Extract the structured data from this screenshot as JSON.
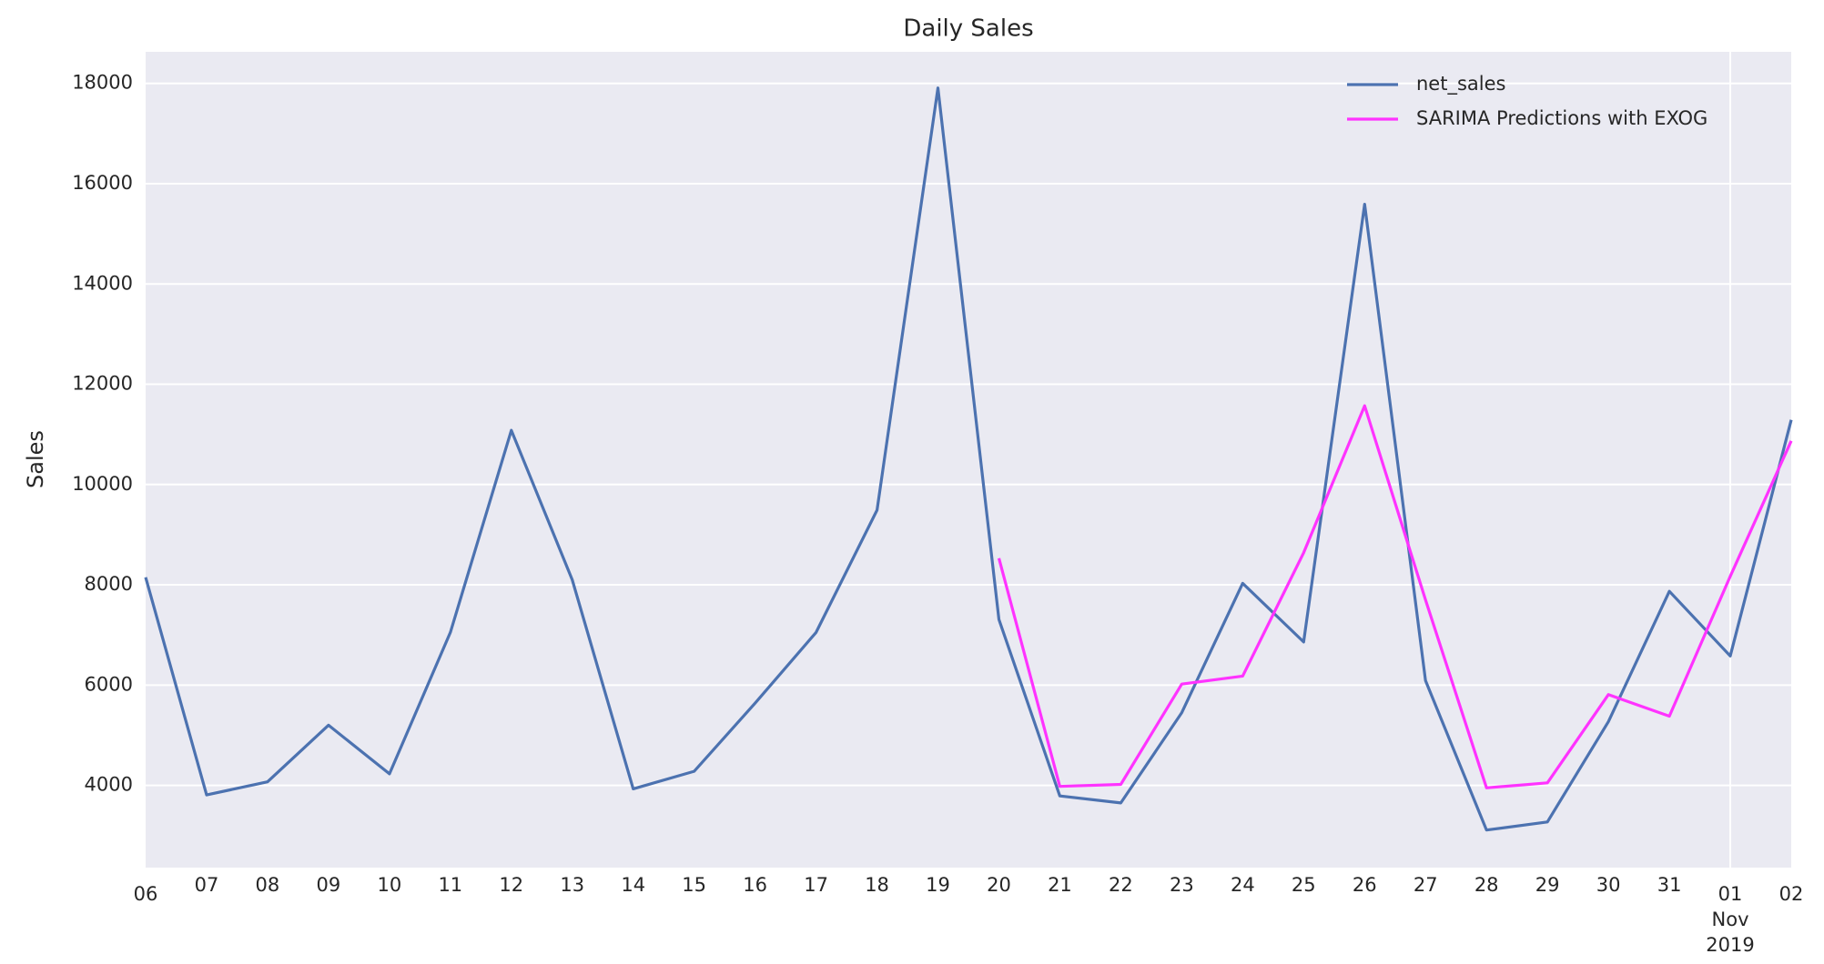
{
  "chart_data": {
    "type": "line",
    "title": "Daily Sales",
    "ylabel": "Sales",
    "categories": [
      "06",
      "07",
      "08",
      "09",
      "10",
      "11",
      "12",
      "13",
      "14",
      "15",
      "16",
      "17",
      "18",
      "19",
      "20",
      "21",
      "22",
      "23",
      "24",
      "25",
      "26",
      "27",
      "28",
      "29",
      "30",
      "31",
      "01",
      "02"
    ],
    "period_label": {
      "index": 26,
      "lines": [
        "Nov",
        "2019"
      ]
    },
    "series": [
      {
        "name": "net_sales",
        "color": "#4c72b0",
        "values": [
          8150,
          3810,
          4070,
          5200,
          4230,
          7050,
          11080,
          8100,
          3930,
          4280,
          5640,
          7050,
          9490,
          17910,
          7310,
          3790,
          3650,
          5450,
          8030,
          6860,
          15590,
          6090,
          3110,
          3270,
          5270,
          7870,
          6580,
          11290
        ]
      },
      {
        "name": "SARIMA Predictions with EXOG",
        "color": "#ff33ff",
        "values": [
          null,
          null,
          null,
          null,
          null,
          null,
          null,
          null,
          null,
          null,
          null,
          null,
          null,
          null,
          8530,
          3980,
          4020,
          6020,
          6180,
          8640,
          11570,
          7700,
          3950,
          4050,
          5810,
          5380,
          8170,
          10870
        ]
      }
    ],
    "ylim": [
      2360,
      18630
    ],
    "yticks": [
      4000,
      6000,
      8000,
      10000,
      12000,
      14000,
      16000,
      18000
    ],
    "grid": true,
    "legend": "upper right"
  }
}
